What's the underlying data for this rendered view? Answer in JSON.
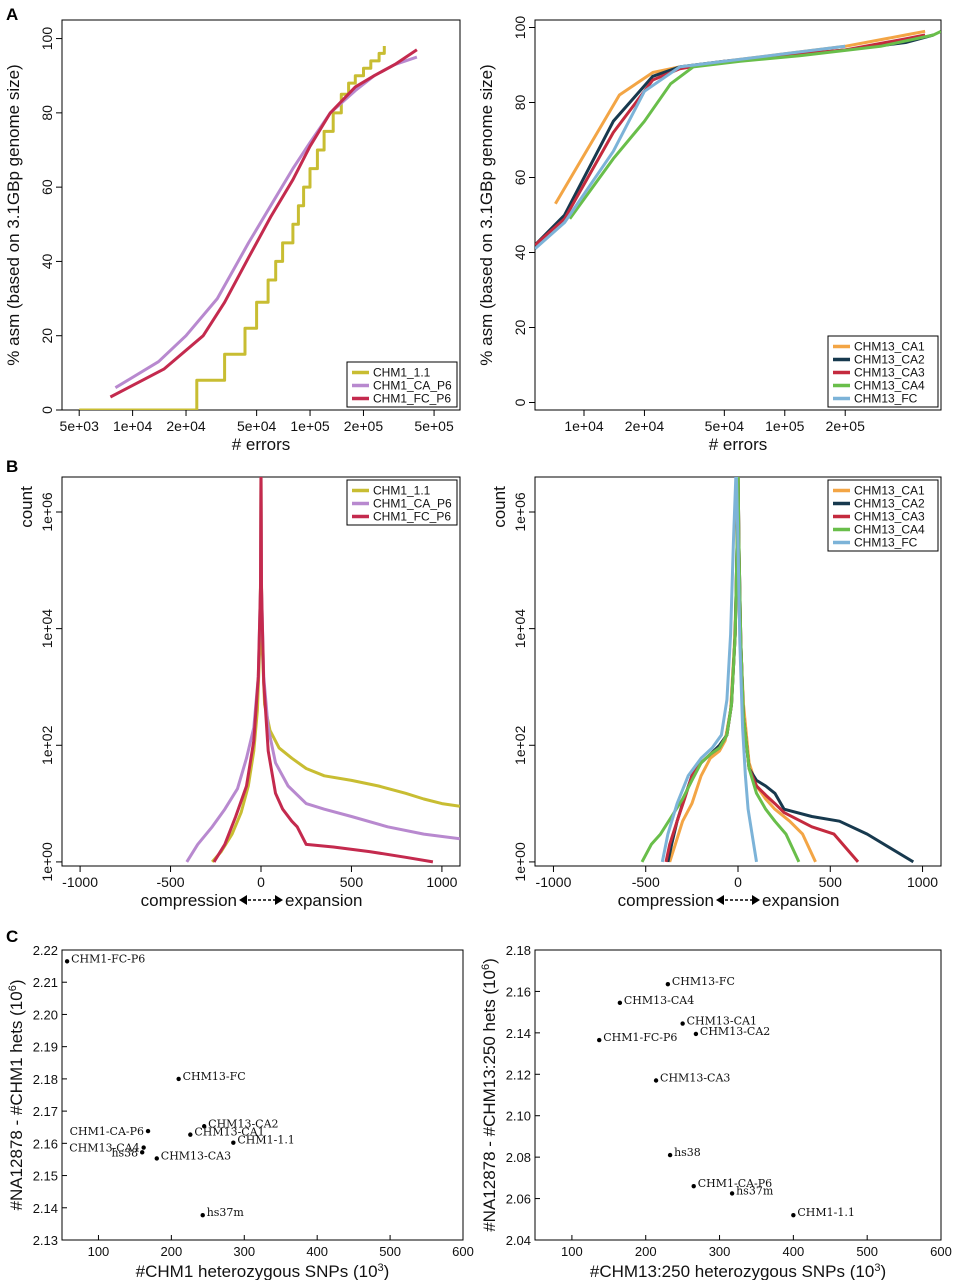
{
  "panels": [
    {
      "letter": "A"
    },
    {
      "letter": "B"
    },
    {
      "letter": "C"
    }
  ],
  "chart_data": [
    {
      "id": "A1",
      "type": "line",
      "xscale": "log",
      "title": "",
      "xlabel": "# errors",
      "ylabel": "% asm (based on 3.1GBp genome size)",
      "xlim": [
        4000,
        700000
      ],
      "ylim": [
        0,
        105
      ],
      "xticks": [
        5000,
        10000,
        20000,
        50000,
        100000,
        200000,
        500000
      ],
      "xticklabels": [
        "5e+03",
        "1e+04",
        "2e+04",
        "5e+04",
        "1e+05",
        "2e+05",
        "5e+05"
      ],
      "yticks": [
        0,
        20,
        40,
        60,
        80,
        100
      ],
      "yticklabels": [
        "0",
        "20",
        "40",
        "60",
        "80",
        "100"
      ],
      "legend_position": "bottom-right",
      "series": [
        {
          "name": "CHM1_1.1",
          "color": "#c8bd32",
          "step": true,
          "x": [
            5000,
            23000,
            23000,
            33000,
            33000,
            43000,
            50000,
            58000,
            64000,
            70000,
            80000,
            86000,
            92000,
            100000,
            110000,
            120000,
            135000,
            150000,
            165000,
            180000,
            200000,
            220000,
            245000,
            262000
          ],
          "y": [
            0,
            0,
            8,
            8,
            15,
            22,
            29,
            35,
            40,
            45,
            50,
            55,
            60,
            65,
            70,
            75,
            80,
            85,
            88,
            90,
            92,
            94,
            96,
            98
          ]
        },
        {
          "name": "CHM1_CA_P6",
          "color": "#b889cf",
          "x": [
            8000,
            14000,
            20000,
            30000,
            45000,
            60000,
            80000,
            100000,
            130000,
            180000,
            230000,
            300000,
            400000
          ],
          "y": [
            6,
            13,
            20,
            30,
            45,
            55,
            65,
            72,
            80,
            86,
            90,
            93,
            95
          ]
        },
        {
          "name": "CHM1_FC_P6",
          "color": "#c42a4e",
          "x": [
            7500,
            15000,
            25000,
            33000,
            45000,
            60000,
            80000,
            100000,
            130000,
            180000,
            230000,
            300000,
            400000
          ],
          "y": [
            3.5,
            11,
            20,
            29,
            41,
            52,
            62,
            71,
            80,
            87,
            90,
            93,
            97
          ]
        }
      ]
    },
    {
      "id": "A2",
      "type": "line",
      "xscale": "log",
      "title": "",
      "xlabel": "# errors",
      "ylabel": "% asm (based on 3.1GBp genome size)",
      "xlim": [
        5700,
        600000
      ],
      "ylim": [
        -2,
        102
      ],
      "xticks": [
        10000,
        20000,
        50000,
        100000,
        200000
      ],
      "xticklabels": [
        "1e+04",
        "2e+04",
        "5e+04",
        "1e+05",
        "2e+05"
      ],
      "yticks": [
        0,
        20,
        40,
        60,
        80,
        100
      ],
      "yticklabels": [
        "0",
        "20",
        "40",
        "60",
        "80",
        "100"
      ],
      "legend_position": "bottom-right",
      "series": [
        {
          "name": "CHM13_CA1",
          "color": "#f3a545",
          "x": [
            7200,
            15000,
            22000,
            30000,
            50000,
            100000,
            200000,
            400000,
            500000
          ],
          "y": [
            53,
            82,
            88,
            89.5,
            91,
            93,
            95,
            98,
            99
          ]
        },
        {
          "name": "CHM13_CA2",
          "color": "#17394e",
          "x": [
            5700,
            8000,
            14000,
            22000,
            30000,
            50000,
            100000,
            200000,
            400000,
            550000
          ],
          "y": [
            42,
            50,
            75,
            87,
            89.5,
            91,
            92.5,
            94,
            96,
            98
          ]
        },
        {
          "name": "CHM13_CA3",
          "color": "#c42a3e",
          "x": [
            5700,
            8000,
            14000,
            22000,
            30000,
            50000,
            100000,
            200000,
            400000,
            500000
          ],
          "y": [
            42,
            49,
            72,
            86,
            89,
            91,
            92.5,
            94,
            97,
            98
          ]
        },
        {
          "name": "CHM13_CA4",
          "color": "#69be4a",
          "x": [
            8500,
            14000,
            20000,
            27000,
            35000,
            60000,
            120000,
            300000,
            550000,
            600000
          ],
          "y": [
            49,
            65,
            75,
            85,
            89.5,
            91,
            92.5,
            95,
            98,
            99
          ]
        },
        {
          "name": "CHM13_FC",
          "color": "#7cb3d8",
          "x": [
            5700,
            8000,
            14000,
            20000,
            30000,
            50000,
            100000,
            200000
          ],
          "y": [
            41,
            48,
            67,
            83,
            89.5,
            91,
            93,
            95
          ]
        }
      ]
    },
    {
      "id": "B1",
      "type": "line",
      "yscale": "log",
      "xlabel_left": "compression",
      "xlabel_right": "expansion",
      "ylabel": "count",
      "xlim": [
        -1100,
        1100
      ],
      "ylim_log10": [
        -0.07,
        6.6
      ],
      "xticks": [
        -1000,
        -500,
        0,
        500,
        1000
      ],
      "xticklabels": [
        "-1000",
        "-500",
        "0",
        "500",
        "1000"
      ],
      "yticks_log10": [
        0,
        2,
        4,
        6
      ],
      "yticklabels": [
        "1e+00",
        "1e+02",
        "1e+04",
        "1e+06"
      ],
      "legend_position": "top-right",
      "series": [
        {
          "name": "CHM1_1.1",
          "color": "#c8bd32",
          "x": [
            -270,
            -220,
            -160,
            -110,
            -70,
            -40,
            -20,
            -8,
            -2,
            0,
            2,
            8,
            20,
            50,
            100,
            170,
            250,
            350,
            500,
            650,
            800,
            900,
            1000,
            1100
          ],
          "y": [
            1,
            1.5,
            3,
            7,
            20,
            80,
            400,
            4000,
            80000,
            6000000,
            80000,
            4000,
            500,
            180,
            90,
            60,
            40,
            30,
            25,
            20,
            15,
            12,
            10,
            9
          ]
        },
        {
          "name": "CHM1_CA_P6",
          "color": "#b889cf",
          "x": [
            -410,
            -350,
            -270,
            -200,
            -130,
            -80,
            -40,
            -15,
            -3,
            0,
            3,
            15,
            40,
            80,
            150,
            250,
            350,
            500,
            700,
            900,
            1100
          ],
          "y": [
            1,
            2,
            4,
            8,
            18,
            60,
            200,
            1500,
            50000,
            5000000,
            50000,
            1500,
            200,
            50,
            20,
            10,
            8,
            6,
            4,
            3,
            2.5
          ]
        },
        {
          "name": "CHM1_FC_P6",
          "color": "#c42a4e",
          "x": [
            -260,
            -200,
            -140,
            -80,
            -40,
            -15,
            -3,
            0,
            3,
            15,
            40,
            80,
            120,
            170,
            200,
            250,
            400,
            600,
            800,
            950
          ],
          "y": [
            1,
            2,
            6,
            20,
            120,
            1500,
            50000,
            5000000,
            50000,
            1200,
            80,
            15,
            8,
            5,
            4,
            2,
            1.8,
            1.5,
            1.2,
            1
          ]
        }
      ]
    },
    {
      "id": "B2",
      "type": "line",
      "yscale": "log",
      "xlabel_left": "compression",
      "xlabel_right": "expansion",
      "ylabel": "count",
      "xlim": [
        -1100,
        1100
      ],
      "ylim_log10": [
        -0.07,
        6.6
      ],
      "xticks": [
        -1000,
        -500,
        0,
        500,
        1000
      ],
      "xticklabels": [
        "-1000",
        "-500",
        "0",
        "500",
        "1000"
      ],
      "yticks_log10": [
        0,
        2,
        4,
        6
      ],
      "yticklabels": [
        "1e+00",
        "1e+02",
        "1e+04",
        "1e+06"
      ],
      "legend_position": "top-right",
      "series": [
        {
          "name": "CHM13_CA1",
          "color": "#f3a545",
          "x": [
            -370,
            -340,
            -300,
            -250,
            -200,
            -150,
            -100,
            -70,
            -40,
            -20,
            -5,
            0,
            5,
            15,
            30,
            60,
            100,
            150,
            200,
            280,
            350,
            420
          ],
          "y": [
            1,
            2,
            5,
            10,
            30,
            60,
            80,
            120,
            400,
            5000,
            100000,
            6000000,
            200000,
            5000,
            500,
            50,
            20,
            12,
            8,
            5,
            3,
            1
          ]
        },
        {
          "name": "CHM13_CA2",
          "color": "#17394e",
          "x": [
            -380,
            -360,
            -330,
            -300,
            -250,
            -200,
            -150,
            -100,
            -60,
            -35,
            -15,
            -5,
            0,
            5,
            15,
            30,
            60,
            100,
            150,
            200,
            250,
            400,
            550,
            700,
            950
          ],
          "y": [
            1,
            2,
            5,
            10,
            30,
            50,
            70,
            100,
            150,
            500,
            8000,
            300000,
            6000000,
            300000,
            6000,
            300,
            40,
            25,
            20,
            15,
            8,
            6,
            5,
            3,
            1
          ]
        },
        {
          "name": "CHM13_CA3",
          "color": "#c42a3e",
          "x": [
            -390,
            -370,
            -330,
            -290,
            -250,
            -200,
            -150,
            -100,
            -60,
            -35,
            -15,
            -5,
            0,
            5,
            15,
            30,
            60,
            100,
            150,
            200,
            250,
            400,
            520,
            650
          ],
          "y": [
            1,
            2,
            5,
            12,
            30,
            50,
            70,
            90,
            150,
            500,
            8000,
            300000,
            6000000,
            300000,
            6000,
            300,
            40,
            20,
            14,
            10,
            7,
            4,
            3,
            1
          ]
        },
        {
          "name": "CHM13_CA4",
          "color": "#69be4a",
          "x": [
            -520,
            -470,
            -420,
            -360,
            -300,
            -250,
            -200,
            -150,
            -100,
            -60,
            -35,
            -15,
            -5,
            0,
            5,
            15,
            30,
            60,
            100,
            150,
            200,
            260,
            330
          ],
          "y": [
            1,
            2,
            3,
            6,
            12,
            25,
            50,
            70,
            90,
            150,
            500,
            8000,
            300000,
            6000000,
            300000,
            6000,
            300,
            40,
            15,
            8,
            5,
            3,
            1
          ]
        },
        {
          "name": "CHM13_FC",
          "color": "#7cb3d8",
          "x": [
            -410,
            -380,
            -330,
            -270,
            -200,
            -140,
            -90,
            -60,
            -40,
            -25,
            -10,
            0,
            10,
            25,
            40,
            55,
            70,
            85,
            100
          ],
          "y": [
            1,
            3,
            10,
            30,
            60,
            90,
            150,
            600,
            8000,
            300000,
            6000000,
            300000,
            6000,
            200,
            30,
            8,
            4,
            2,
            1
          ]
        }
      ]
    },
    {
      "id": "C1",
      "type": "scatter",
      "xlabel": "#CHM1 heterozygous SNPs (10",
      "xlabel_sup": "3",
      "xlabel_end": ")",
      "ylabel": "#NA12878 - #CHM1 hets (10",
      "ylabel_sup": "6",
      "ylabel_end": ")",
      "xlim": [
        50,
        600
      ],
      "ylim": [
        2.13,
        2.22
      ],
      "xticks": [
        100,
        200,
        300,
        400,
        500,
        600
      ],
      "xticklabels": [
        "100",
        "200",
        "300",
        "400",
        "500",
        "600"
      ],
      "yticks": [
        2.13,
        2.14,
        2.15,
        2.16,
        2.17,
        2.18,
        2.19,
        2.2,
        2.21,
        2.22
      ],
      "yticklabels": [
        "2.13",
        "2.14",
        "2.15",
        "2.16",
        "2.17",
        "2.18",
        "2.19",
        "2.20",
        "2.21",
        "2.22"
      ],
      "points": [
        {
          "label": "CHM1-FC-P6",
          "x": 57,
          "y": 2.2165,
          "align": "right"
        },
        {
          "label": "CHM13-FC",
          "x": 210,
          "y": 2.18,
          "align": "right"
        },
        {
          "label": "CHM13-CA2",
          "x": 245,
          "y": 2.1653,
          "align": "right"
        },
        {
          "label": "CHM13-CA1",
          "x": 226,
          "y": 2.1627,
          "align": "right"
        },
        {
          "label": "CHM1-1.1",
          "x": 285,
          "y": 2.1602,
          "align": "right"
        },
        {
          "label": "CHM1-CA-P6",
          "x": 168,
          "y": 2.1638,
          "align": "left"
        },
        {
          "label": "CHM13-CA4",
          "x": 162,
          "y": 2.1587,
          "align": "left"
        },
        {
          "label": "hs38",
          "x": 160,
          "y": 2.1572,
          "align": "left"
        },
        {
          "label": "CHM13-CA3",
          "x": 180,
          "y": 2.1553,
          "align": "right"
        },
        {
          "label": "hs37m",
          "x": 243,
          "y": 2.1377,
          "align": "right"
        }
      ]
    },
    {
      "id": "C2",
      "type": "scatter",
      "xlabel": "#CHM13:250 heterozygous SNPs (10",
      "xlabel_sup": "3",
      "xlabel_end": ")",
      "ylabel": "#NA12878 - #CHM13:250 hets (10",
      "ylabel_sup": "6",
      "ylabel_end": ")",
      "xlim": [
        50,
        600
      ],
      "ylim": [
        2.04,
        2.18
      ],
      "xticks": [
        100,
        200,
        300,
        400,
        500,
        600
      ],
      "xticklabels": [
        "100",
        "200",
        "300",
        "400",
        "500",
        "600"
      ],
      "yticks": [
        2.04,
        2.06,
        2.08,
        2.1,
        2.12,
        2.14,
        2.16,
        2.18
      ],
      "yticklabels": [
        "2.04",
        "2.06",
        "2.08",
        "2.10",
        "2.12",
        "2.14",
        "2.16",
        "2.18"
      ],
      "points": [
        {
          "label": "CHM13-FC",
          "x": 230,
          "y": 2.1635,
          "align": "right"
        },
        {
          "label": "CHM13-CA4",
          "x": 165,
          "y": 2.1545,
          "align": "right"
        },
        {
          "label": "CHM13-CA1",
          "x": 250,
          "y": 2.1445,
          "align": "right"
        },
        {
          "label": "CHM13-CA2",
          "x": 268,
          "y": 2.1395,
          "align": "right"
        },
        {
          "label": "CHM1-FC-P6",
          "x": 137,
          "y": 2.1365,
          "align": "right"
        },
        {
          "label": "CHM13-CA3",
          "x": 214,
          "y": 2.117,
          "align": "right"
        },
        {
          "label": "hs38",
          "x": 233,
          "y": 2.081,
          "align": "right"
        },
        {
          "label": "CHM1-CA-P6",
          "x": 265,
          "y": 2.066,
          "align": "right"
        },
        {
          "label": "hs37m",
          "x": 317,
          "y": 2.0625,
          "align": "right"
        },
        {
          "label": "CHM1-1.1",
          "x": 400,
          "y": 2.052,
          "align": "right"
        }
      ]
    }
  ]
}
